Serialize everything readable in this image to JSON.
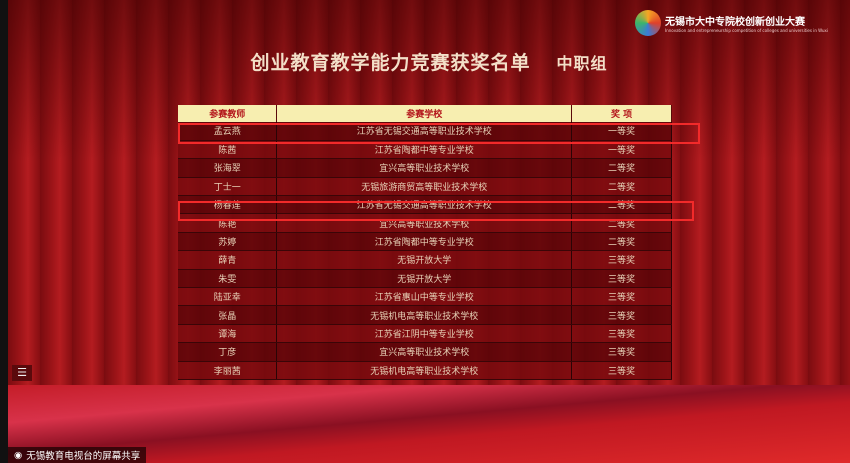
{
  "title": "创业教育教学能力竞赛获奖名单",
  "subtitle": "中职组",
  "logo": {
    "text": "无锡市大中专院校创新创业大赛",
    "en": "Innovation and entrepreneurship competition of colleges and universities in Wuxi"
  },
  "table": {
    "headers": [
      "参赛教师",
      "参赛学校",
      "奖 项"
    ],
    "rows": [
      [
        "孟云燕",
        "江苏省无锡交通高等职业技术学校",
        "一等奖"
      ],
      [
        "陈茜",
        "江苏省陶都中等专业学校",
        "一等奖"
      ],
      [
        "张海翠",
        "宜兴高等职业技术学校",
        "二等奖"
      ],
      [
        "丁士一",
        "无锡旅游商贸高等职业技术学校",
        "二等奖"
      ],
      [
        "杨春莲",
        "江苏省无锡交通高等职业技术学校",
        "二等奖"
      ],
      [
        "陈艳",
        "宜兴高等职业技术学校",
        "二等奖"
      ],
      [
        "苏婷",
        "江苏省陶都中等专业学校",
        "二等奖"
      ],
      [
        "薛青",
        "无锡开放大学",
        "三等奖"
      ],
      [
        "朱雯",
        "无锡开放大学",
        "三等奖"
      ],
      [
        "陆亚幸",
        "江苏省惠山中等专业学校",
        "三等奖"
      ],
      [
        "张晶",
        "无锡机电高等职业技术学校",
        "三等奖"
      ],
      [
        "谭海",
        "江苏省江阴中等专业学校",
        "三等奖"
      ],
      [
        "丁彦",
        "宜兴高等职业技术学校",
        "三等奖"
      ],
      [
        "李丽茜",
        "无锡机电高等职业技术学校",
        "三等奖"
      ]
    ]
  },
  "highlighted_rows": [
    0,
    4
  ],
  "share_label": "无锡教育电视台的屏幕共享",
  "menu_icon": "menu-icon",
  "accent": "#f22a2a"
}
